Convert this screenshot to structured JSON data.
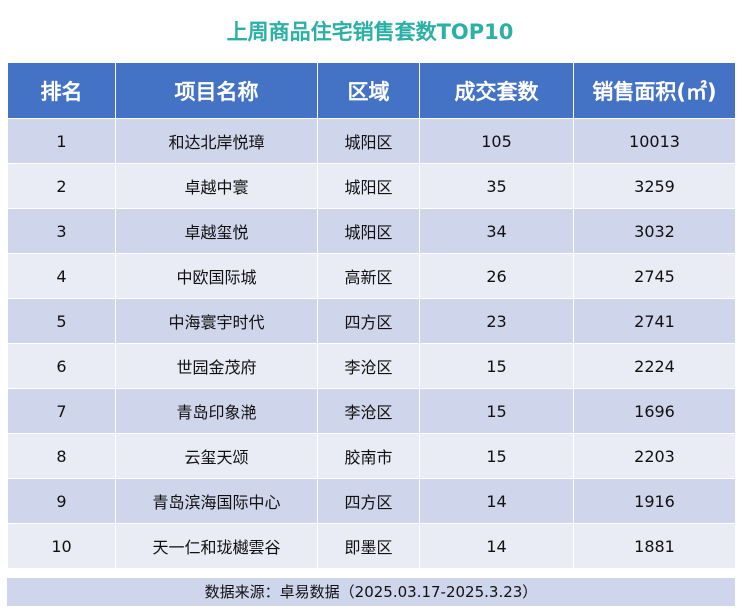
{
  "title": "上周商品住宅销售套数TOP10",
  "headers": [
    "排名",
    "项目名称",
    "区域",
    "成交套数",
    "销售面积(㎡)"
  ],
  "rows": [
    [
      "1",
      "和达北岸悦璋",
      "城阳区",
      "105",
      "10013"
    ],
    [
      "2",
      "卓越中寰",
      "城阳区",
      "35",
      "3259"
    ],
    [
      "3",
      "卓越玺悦",
      "城阳区",
      "34",
      "3032"
    ],
    [
      "4",
      "中欧国际城",
      "高新区",
      "26",
      "2745"
    ],
    [
      "5",
      "中海寰宇时代",
      "四方区",
      "23",
      "2741"
    ],
    [
      "6",
      "世园金茂府",
      "李沧区",
      "15",
      "2224"
    ],
    [
      "7",
      "青岛印象滟",
      "李沧区",
      "15",
      "1696"
    ],
    [
      "8",
      "云玺天颂",
      "胶南市",
      "15",
      "2203"
    ],
    [
      "9",
      "青岛滨海国际中心",
      "四方区",
      "14",
      "1916"
    ],
    [
      "10",
      "天一仁和珑樾雲谷",
      "即墨区",
      "14",
      "1881"
    ]
  ],
  "source": "数据来源：卓易数据（2025.03.17-2025.3.23）",
  "colors": {
    "title": "#2bb0a6",
    "header_bg": "#4472c4",
    "row_dark": "#cfd5ea",
    "row_light": "#e9ebf5"
  }
}
